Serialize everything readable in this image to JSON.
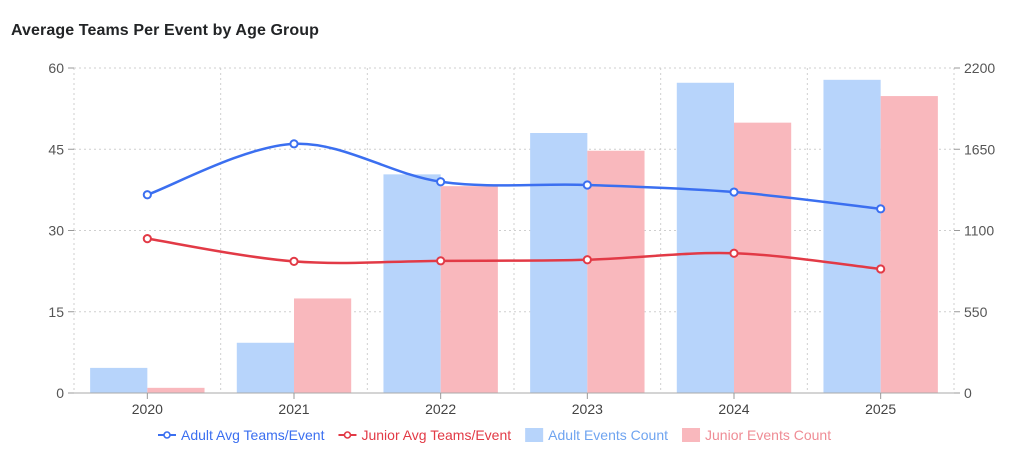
{
  "chart_data": {
    "type": "bar+line",
    "title": "Average Teams Per Event by Age Group",
    "categories": [
      "2020",
      "2021",
      "2022",
      "2023",
      "2024",
      "2025"
    ],
    "y_left": {
      "range": [
        0,
        60
      ],
      "ticks": [
        "0",
        "15",
        "30",
        "45",
        "60"
      ]
    },
    "y_right": {
      "range": [
        0,
        2200
      ],
      "ticks": [
        "0",
        "550",
        "1100",
        "1650",
        "2200"
      ]
    },
    "grid": true,
    "legend_position": "bottom",
    "series": [
      {
        "name": "Adult Avg Teams/Event",
        "kind": "line",
        "axis": "left",
        "color": "#3b6ff0",
        "values": [
          36.6,
          46.0,
          39.0,
          38.4,
          37.1,
          34.0
        ]
      },
      {
        "name": "Junior Avg Teams/Event",
        "kind": "line",
        "axis": "left",
        "color": "#e23a46",
        "values": [
          28.5,
          24.3,
          24.4,
          24.6,
          25.8,
          22.9
        ]
      },
      {
        "name": "Adult Events Count",
        "kind": "bar",
        "axis": "right",
        "color": "#b7d4fb",
        "values": [
          170,
          340,
          1480,
          1760,
          2100,
          2120
        ]
      },
      {
        "name": "Junior Events Count",
        "kind": "bar",
        "axis": "right",
        "color": "#f9b8bd",
        "values": [
          35,
          640,
          1400,
          1640,
          1830,
          2010
        ]
      }
    ]
  }
}
